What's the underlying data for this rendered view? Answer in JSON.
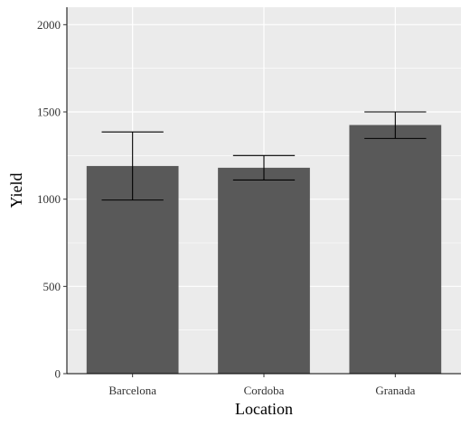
{
  "chart_data": {
    "type": "bar",
    "title": "",
    "xlabel": "Location",
    "ylabel": "Yield",
    "categories": [
      "Barcelona",
      "Cordoba",
      "Granada"
    ],
    "values": [
      1190,
      1180,
      1425
    ],
    "error_low": [
      995,
      1110,
      1348
    ],
    "error_high": [
      1385,
      1250,
      1500
    ],
    "ylim": [
      0,
      2100
    ],
    "yticks": [
      0,
      500,
      1000,
      1500,
      2000
    ],
    "grid": true,
    "colors": {
      "bar": "#595959",
      "panel": "#ebebeb",
      "grid": "#ffffff",
      "error": "#000000"
    }
  }
}
